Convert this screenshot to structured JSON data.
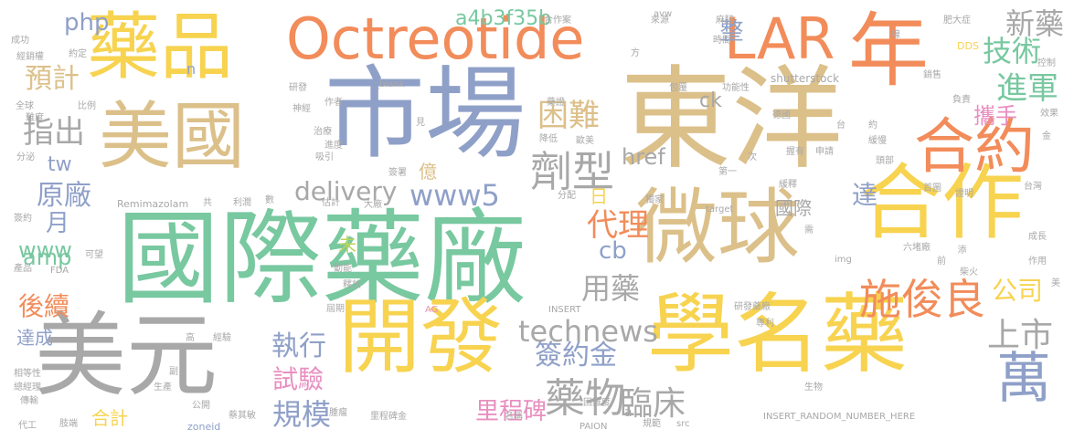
{
  "colors": {
    "orange": "#f28c5a",
    "blue": "#8fa0c8",
    "tan": "#dcc08a",
    "gold": "#f7d34f",
    "green": "#78c8a0",
    "gray": "#a8a8a8",
    "pink": "#e88fc0",
    "lime": "#b8d45a"
  },
  "words": [
    {
      "text": "東洋",
      "color": "tan"
    },
    {
      "text": "國際藥廠",
      "color": "green"
    },
    {
      "text": "市場",
      "color": "blue"
    },
    {
      "text": "美元",
      "color": "gray"
    },
    {
      "text": "學名藥",
      "color": "gold"
    },
    {
      "text": "Octreotide",
      "color": "orange"
    },
    {
      "text": "LAR",
      "color": "orange"
    },
    {
      "text": "美國",
      "color": "tan"
    },
    {
      "text": "藥品",
      "color": "gold"
    },
    {
      "text": "合作",
      "color": "gold"
    },
    {
      "text": "微球",
      "color": "tan"
    },
    {
      "text": "開發",
      "color": "gold"
    },
    {
      "text": "年",
      "color": "orange"
    },
    {
      "text": "合約",
      "color": "orange"
    },
    {
      "text": "萬",
      "color": "blue"
    },
    {
      "text": "劑型",
      "color": "gray"
    },
    {
      "text": "施俊良",
      "color": "orange"
    },
    {
      "text": "technews",
      "color": "gray"
    },
    {
      "text": "www5",
      "color": "blue"
    },
    {
      "text": "delivery",
      "color": "gray"
    },
    {
      "text": "a4b3f35b",
      "color": "green"
    },
    {
      "text": "藥物",
      "color": "gray"
    },
    {
      "text": "困難",
      "color": "tan"
    },
    {
      "text": "指出",
      "color": "gray"
    },
    {
      "text": "原廠",
      "color": "blue"
    },
    {
      "text": "預計",
      "color": "tan"
    },
    {
      "text": "php",
      "color": "blue"
    },
    {
      "text": "整",
      "color": "blue"
    },
    {
      "text": "技術",
      "color": "green"
    },
    {
      "text": "新藥",
      "color": "gray"
    },
    {
      "text": "進軍",
      "color": "green"
    },
    {
      "text": "攜手",
      "color": "pink"
    },
    {
      "text": "上市",
      "color": "gray"
    },
    {
      "text": "公司",
      "color": "gold"
    },
    {
      "text": "達",
      "color": "blue"
    },
    {
      "text": "代理",
      "color": "orange"
    },
    {
      "text": "cb",
      "color": "blue"
    },
    {
      "text": "ck",
      "color": "gray"
    },
    {
      "text": "href",
      "color": "gray"
    },
    {
      "text": "國際",
      "color": "gray"
    },
    {
      "text": "用藥",
      "color": "gray"
    },
    {
      "text": "簽約金",
      "color": "blue"
    },
    {
      "text": "臨床",
      "color": "gray"
    },
    {
      "text": "里程碑",
      "color": "pink"
    },
    {
      "text": "執行",
      "color": "blue"
    },
    {
      "text": "試驗",
      "color": "pink"
    },
    {
      "text": "規模",
      "color": "blue"
    },
    {
      "text": "後續",
      "color": "orange"
    },
    {
      "text": "amp",
      "color": "green"
    },
    {
      "text": "www",
      "color": "green"
    },
    {
      "text": "tw",
      "color": "blue"
    },
    {
      "text": "月",
      "color": "blue"
    },
    {
      "text": "億",
      "color": "tan"
    },
    {
      "text": "日",
      "color": "gold"
    },
    {
      "text": "未",
      "color": "lime"
    },
    {
      "text": "達成",
      "color": "blue"
    },
    {
      "text": "合計",
      "color": "gold"
    },
    {
      "text": "n",
      "color": "blue"
    },
    {
      "text": "a",
      "color": "gray"
    },
    {
      "text": "Remimazolam",
      "color": "gray"
    },
    {
      "text": "shutterstock",
      "color": "gray"
    },
    {
      "text": "INSERT_RANDOM_NUMBER_HERE",
      "color": "gray"
    },
    {
      "text": "zoneid",
      "color": "blue"
    },
    {
      "text": "PAION",
      "color": "gray"
    },
    {
      "text": "target",
      "color": "gray"
    },
    {
      "text": "img",
      "color": "gray"
    },
    {
      "text": "src",
      "color": "gray"
    },
    {
      "text": "FDA",
      "color": "gray"
    },
    {
      "text": "AG",
      "color": "pink"
    },
    {
      "text": "INSERT",
      "color": "gray"
    },
    {
      "text": "DDS",
      "color": "gold"
    },
    {
      "text": "avw",
      "color": "gray"
    },
    {
      "text": "_blank",
      "color": "gray"
    },
    {
      "text": "成功",
      "color": "gray"
    },
    {
      "text": "經銷權",
      "color": "gray"
    },
    {
      "text": "約定",
      "color": "gray"
    },
    {
      "text": "全球",
      "color": "gray"
    },
    {
      "text": "比例",
      "color": "gray"
    },
    {
      "text": "難度",
      "color": "gray"
    },
    {
      "text": "研發",
      "color": "gray"
    },
    {
      "text": "作者",
      "color": "gray"
    },
    {
      "text": "神經",
      "color": "gray"
    },
    {
      "text": "治療",
      "color": "gray"
    },
    {
      "text": "進度",
      "color": "gray"
    },
    {
      "text": "吸引",
      "color": "gray"
    },
    {
      "text": "分泌",
      "color": "gray"
    },
    {
      "text": "簽署",
      "color": "gray"
    },
    {
      "text": "見",
      "color": "gray"
    },
    {
      "text": "合作案",
      "color": "gray"
    },
    {
      "text": "藥證",
      "color": "gray"
    },
    {
      "text": "降低",
      "color": "gray"
    },
    {
      "text": "歐美",
      "color": "gray"
    },
    {
      "text": "方",
      "color": "gray"
    },
    {
      "text": "來源",
      "color": "gray"
    },
    {
      "text": "麻醉",
      "color": "gray"
    },
    {
      "text": "時間",
      "color": "gray"
    },
    {
      "text": "包覆",
      "color": "gray"
    },
    {
      "text": "功能性",
      "color": "gray"
    },
    {
      "text": "肥大症",
      "color": "gray"
    },
    {
      "text": "線",
      "color": "gray"
    },
    {
      "text": "控制",
      "color": "gray"
    },
    {
      "text": "銷售",
      "color": "gray"
    },
    {
      "text": "負責",
      "color": "gray"
    },
    {
      "text": "效果",
      "color": "gray"
    },
    {
      "text": "德國",
      "color": "gray"
    },
    {
      "text": "台",
      "color": "gray"
    },
    {
      "text": "約",
      "color": "gray"
    },
    {
      "text": "金",
      "color": "gray"
    },
    {
      "text": "握有",
      "color": "gray"
    },
    {
      "text": "申請",
      "color": "gray"
    },
    {
      "text": "緩慢",
      "color": "gray"
    },
    {
      "text": "頭部",
      "color": "gray"
    },
    {
      "text": "第一",
      "color": "gray"
    },
    {
      "text": "次",
      "color": "gray"
    },
    {
      "text": "緩釋",
      "color": "gray"
    },
    {
      "text": "首圖",
      "color": "gray"
    },
    {
      "text": "證明",
      "color": "gray"
    },
    {
      "text": "台灣",
      "color": "gray"
    },
    {
      "text": "獨家",
      "color": "gray"
    },
    {
      "text": "分配",
      "color": "gray"
    },
    {
      "text": "共",
      "color": "gray"
    },
    {
      "text": "利潤",
      "color": "gray"
    },
    {
      "text": "數",
      "color": "gray"
    },
    {
      "text": "估計",
      "color": "gray"
    },
    {
      "text": "大廠",
      "color": "gray"
    },
    {
      "text": "簽約",
      "color": "gray"
    },
    {
      "text": "可望",
      "color": "gray"
    },
    {
      "text": "產品",
      "color": "gray"
    },
    {
      "text": "動能",
      "color": "gray"
    },
    {
      "text": "釋放",
      "color": "gray"
    },
    {
      "text": "屆期",
      "color": "gray"
    },
    {
      "text": "六堵廠",
      "color": "gray"
    },
    {
      "text": "需",
      "color": "gray"
    },
    {
      "text": "前",
      "color": "gray"
    },
    {
      "text": "添",
      "color": "gray"
    },
    {
      "text": "柴火",
      "color": "gray"
    },
    {
      "text": "成長",
      "color": "gray"
    },
    {
      "text": "作用",
      "color": "gray"
    },
    {
      "text": "美",
      "color": "gray"
    },
    {
      "text": "研發藥廠",
      "color": "gray"
    },
    {
      "text": "專利",
      "color": "gray"
    },
    {
      "text": "高",
      "color": "gray"
    },
    {
      "text": "經驗",
      "color": "gray"
    },
    {
      "text": "相等性",
      "color": "gray"
    },
    {
      "text": "總經理",
      "color": "gray"
    },
    {
      "text": "傳輸",
      "color": "gray"
    },
    {
      "text": "副",
      "color": "gray"
    },
    {
      "text": "生產",
      "color": "gray"
    },
    {
      "text": "公開",
      "color": "gray"
    },
    {
      "text": "代工",
      "color": "gray"
    },
    {
      "text": "肢端",
      "color": "gray"
    },
    {
      "text": "蔡其敏",
      "color": "gray"
    },
    {
      "text": "腫瘤",
      "color": "gray"
    },
    {
      "text": "里程碑金",
      "color": "gray"
    },
    {
      "text": "名稱",
      "color": "gray"
    },
    {
      "text": "困難度",
      "color": "gray"
    },
    {
      "text": "規範",
      "color": "gray"
    },
    {
      "text": "生物",
      "color": "gray"
    }
  ]
}
